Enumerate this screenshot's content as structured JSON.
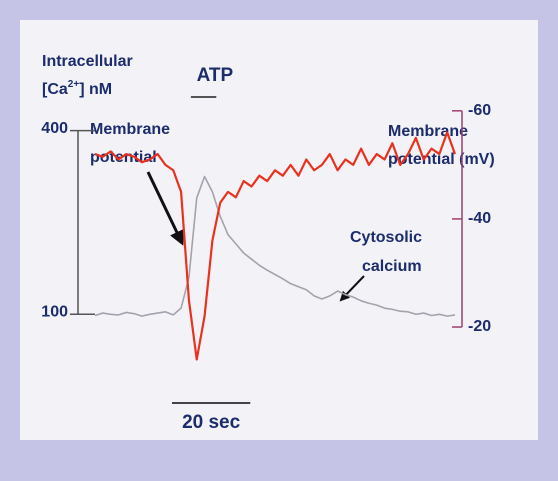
{
  "chart_data": {
    "type": "line",
    "y_label": {
      "line1": "Intracellular",
      "line2_pre": "[Ca",
      "line2_sup": "2+",
      "line2_post": "] nM"
    },
    "y2_label": {
      "line1": "Membrane",
      "line2": "potential (mV)"
    },
    "annotations": [
      {
        "line1": "Membrane",
        "line2": "potential"
      },
      {
        "line1": "Cytosolic",
        "line2": "calcium"
      }
    ],
    "stimulus": {
      "label": "ATP",
      "x": [
        24.5,
        31
      ]
    },
    "scale_bar": {
      "value": 20,
      "label": "20 sec"
    },
    "x": [
      0,
      2,
      4,
      6,
      8,
      10,
      12,
      14,
      16,
      18,
      20,
      22,
      24,
      26,
      28,
      30,
      32,
      34,
      36,
      38,
      40,
      42,
      44,
      46,
      48,
      50,
      52,
      54,
      56,
      58,
      60,
      62,
      64,
      66,
      68,
      70,
      72,
      74,
      76,
      78,
      80,
      82,
      84,
      86,
      88,
      90,
      92
    ],
    "xlim": [
      0,
      92
    ],
    "ylim": [
      -40,
      450
    ],
    "yticks": [
      100,
      400
    ],
    "y2lim": [
      -6.5,
      -62
    ],
    "y2ticks": [
      -20,
      -40,
      -60
    ],
    "series": [
      {
        "name": "Cytosolic calcium",
        "color": "#a4a2ac",
        "values": [
          98,
          102,
          100,
          99,
          103,
          101,
          97,
          100,
          102,
          104,
          99,
          110,
          160,
          290,
          325,
          300,
          260,
          230,
          215,
          200,
          190,
          180,
          172,
          165,
          158,
          150,
          145,
          140,
          130,
          125,
          130,
          138,
          132,
          128,
          122,
          118,
          115,
          110,
          108,
          105,
          104,
          100,
          102,
          98,
          100,
          97,
          99
        ]
      },
      {
        "name": "Membrane potential",
        "color": "#e8321e",
        "axis": "y2",
        "values": [
          -52,
          -51.5,
          -52.5,
          -51,
          -52,
          -51.5,
          -50.5,
          -51,
          -52,
          -50,
          -49,
          -45,
          -25,
          -14,
          -22,
          -36,
          -43,
          -45,
          -44,
          -47,
          -46,
          -48,
          -47,
          -49,
          -48,
          -50,
          -48,
          -51,
          -49,
          -50,
          -52,
          -49,
          -51,
          -50,
          -53,
          -50,
          -52,
          -51,
          -54,
          -50,
          -52,
          -55,
          -51,
          -53,
          -52,
          -56,
          -52
        ]
      }
    ]
  }
}
